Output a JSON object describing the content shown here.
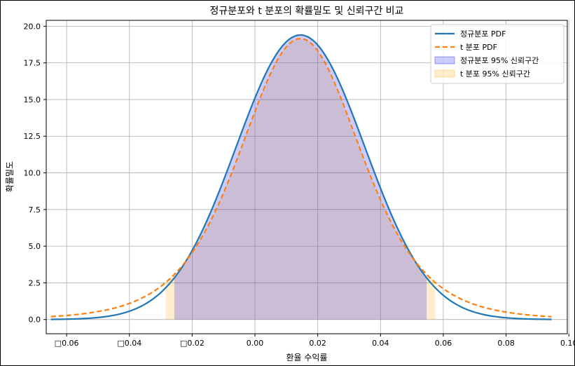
{
  "chart_data": {
    "type": "area",
    "title": "정규분포와 t 분포의 확률밀도 및 신뢰구간 비교",
    "xlabel": "환율 수익률",
    "ylabel": "확률밀도",
    "xlim": [
      -0.0665,
      0.0995
    ],
    "ylim": [
      -0.97,
      20.4
    ],
    "xticks": [
      -0.06,
      -0.04,
      -0.02,
      0.0,
      0.02,
      0.04,
      0.06,
      0.08,
      0.1
    ],
    "xtick_labels": [
      "□0.06",
      "□0.04",
      "□0.02",
      "0.00",
      "0.02",
      "0.04",
      "0.06",
      "0.08",
      "0.10"
    ],
    "yticks": [
      0.0,
      2.5,
      5.0,
      7.5,
      10.0,
      12.5,
      15.0,
      17.5,
      20.0
    ],
    "ytick_labels": [
      "0.0",
      "2.5",
      "5.0",
      "7.5",
      "10.0",
      "12.5",
      "15.0",
      "17.5",
      "20.0"
    ],
    "grid": true,
    "legend_position": "top-right",
    "x_range": [
      -0.065,
      0.0945
    ],
    "series": [
      {
        "name": "정규분포 PDF",
        "kind": "line",
        "style": "solid",
        "color": "#1f77b4",
        "mean": 0.0145,
        "std": 0.0205,
        "peak": 19.4
      },
      {
        "name": "t 분포 PDF",
        "kind": "line",
        "style": "dashed",
        "color": "#ff7f0e",
        "loc": 0.0145,
        "scale": 0.0198,
        "df": 6,
        "peak": 19.15
      }
    ],
    "intervals": [
      {
        "name": "정규분포 95% 신뢰구간",
        "color": "#0000ff",
        "opacity": 0.2,
        "lower": -0.0257,
        "upper": 0.0547
      },
      {
        "name": "t 분포 95% 신뢰구간",
        "color": "#ffa500",
        "opacity": 0.2,
        "lower": -0.0284,
        "upper": 0.0574
      }
    ]
  }
}
